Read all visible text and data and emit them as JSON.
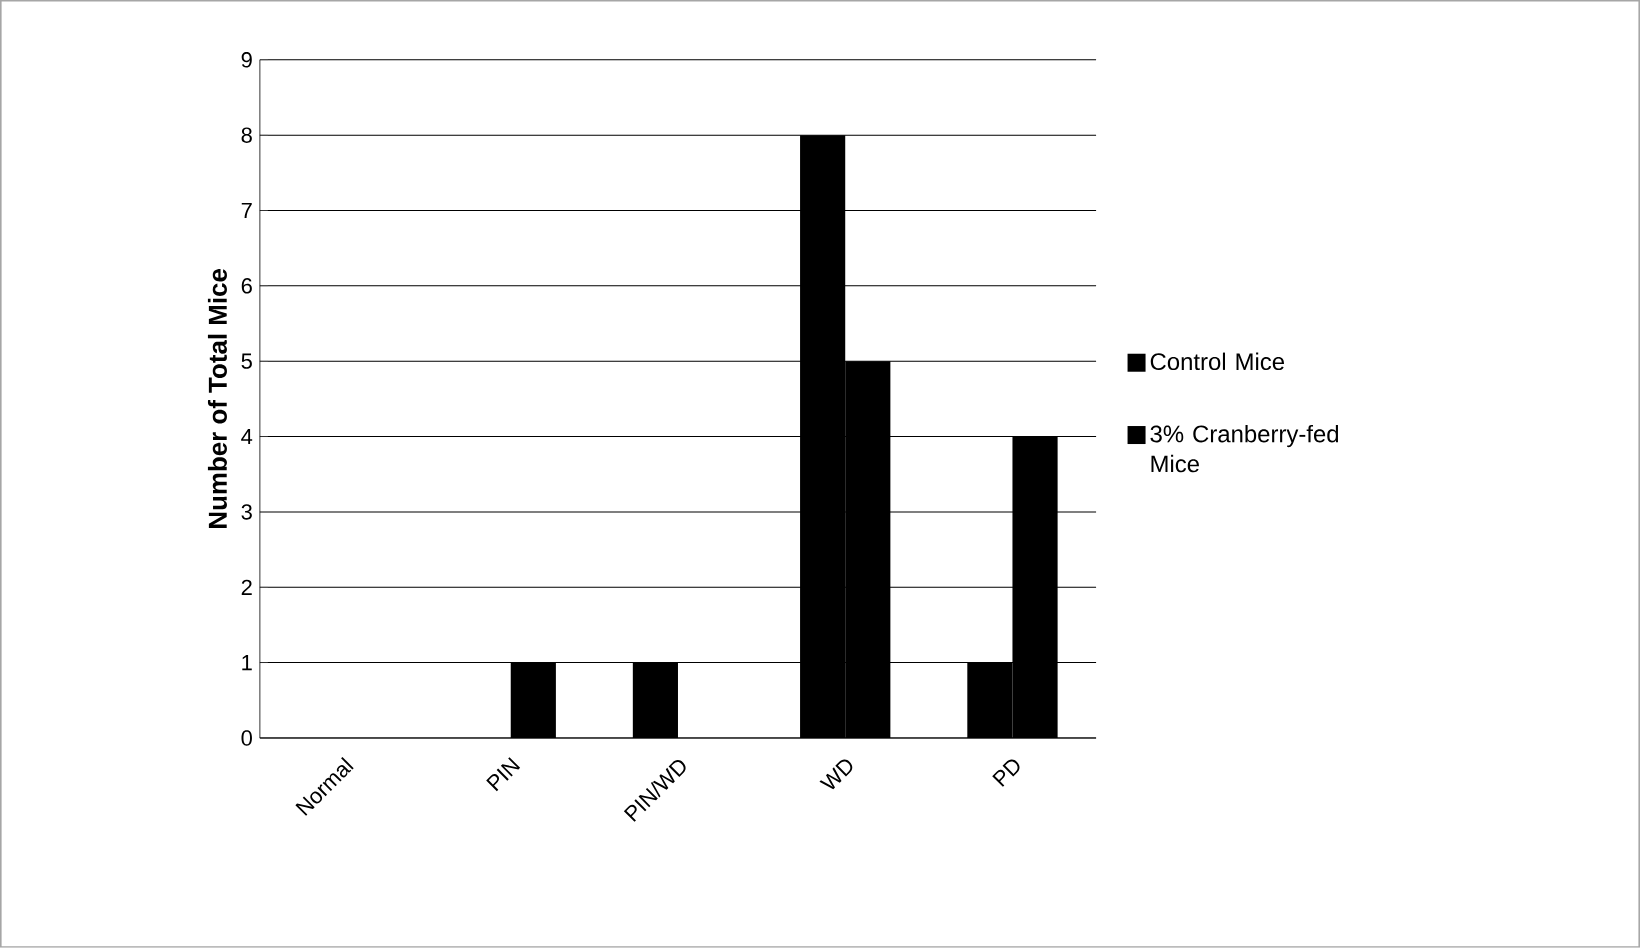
{
  "chart_data": {
    "type": "bar",
    "ylabel": "Number of Total Mice",
    "categories": [
      "Normal",
      "PIN",
      "PIN/WD",
      "WD",
      "PD"
    ],
    "series": [
      {
        "name": "Control Mice",
        "color": "#000000",
        "values": [
          0,
          0,
          1,
          8,
          1
        ]
      },
      {
        "name": "3% Cranberry-fed Mice",
        "color": "#000000",
        "values": [
          0,
          1,
          0,
          5,
          4
        ]
      }
    ],
    "ylim": [
      0,
      9
    ],
    "yticks": [
      0,
      1,
      2,
      3,
      4,
      5,
      6,
      7,
      8,
      9
    ],
    "grid": "y",
    "legend": "right"
  }
}
